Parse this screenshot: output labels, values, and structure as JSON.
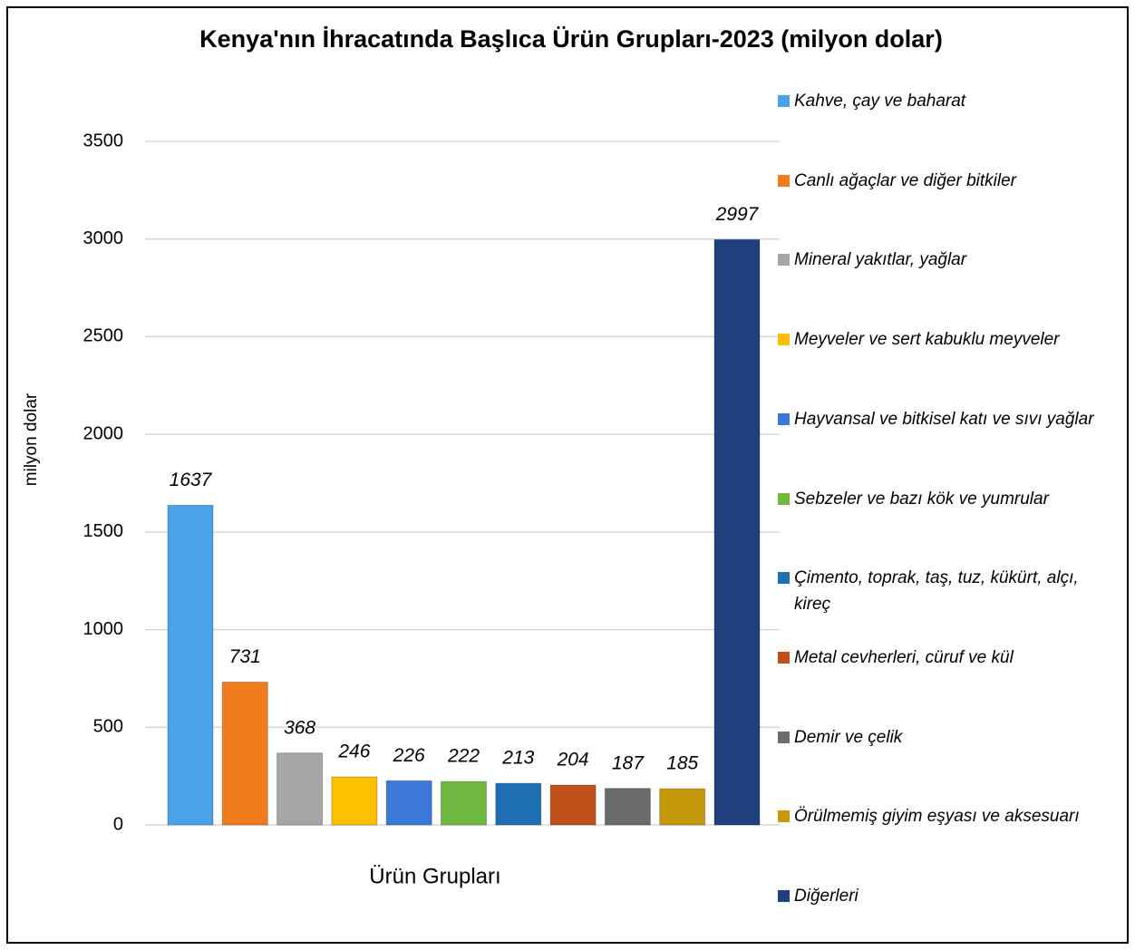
{
  "chart_data": {
    "type": "bar",
    "title": "Kenya'nın İhracatında Başlıca Ürün Grupları-2023 (milyon dolar)",
    "x_label": "Ürün Grupları",
    "y_label": "milyon dolar",
    "ylim": [
      0,
      3500
    ],
    "yticks": [
      0,
      500,
      1000,
      1500,
      2000,
      2500,
      3000,
      3500
    ],
    "grid": true,
    "legend": "right",
    "series": [
      {
        "name": "Kahve, çay ve baharat",
        "color": "#4aa3e8",
        "values": [
          1637
        ]
      },
      {
        "name": "Canlı ağaçlar ve diğer bitkiler",
        "color": "#f07c1e",
        "values": [
          731
        ]
      },
      {
        "name": "Mineral yakıtlar, yağlar",
        "color": "#a6a6a6",
        "values": [
          368
        ]
      },
      {
        "name": "Meyveler ve sert kabuklu meyveler",
        "color": "#ffc000",
        "values": [
          246
        ]
      },
      {
        "name": "Hayvansal ve bitkisel katı ve sıvı yağlar",
        "color": "#3c78d8",
        "values": [
          226
        ]
      },
      {
        "name": "Sebzeler ve bazı kök ve yumrular",
        "color": "#70b83f",
        "values": [
          222
        ]
      },
      {
        "name": "Çimento, toprak, taş, tuz, kükürt, alçı, kireç",
        "color": "#1f6fb5",
        "values": [
          213
        ]
      },
      {
        "name": "Metal cevherleri, cüruf ve kül",
        "color": "#c0501a",
        "values": [
          204
        ]
      },
      {
        "name": "Demir ve çelik",
        "color": "#6b6b6b",
        "values": [
          187
        ]
      },
      {
        "name": "Örülmemiş giyim eşyası ve aksesuarı",
        "color": "#c49a0c",
        "values": [
          185
        ]
      },
      {
        "name": "Diğerleri",
        "color": "#1f3f7f",
        "values": [
          2997
        ]
      }
    ]
  }
}
